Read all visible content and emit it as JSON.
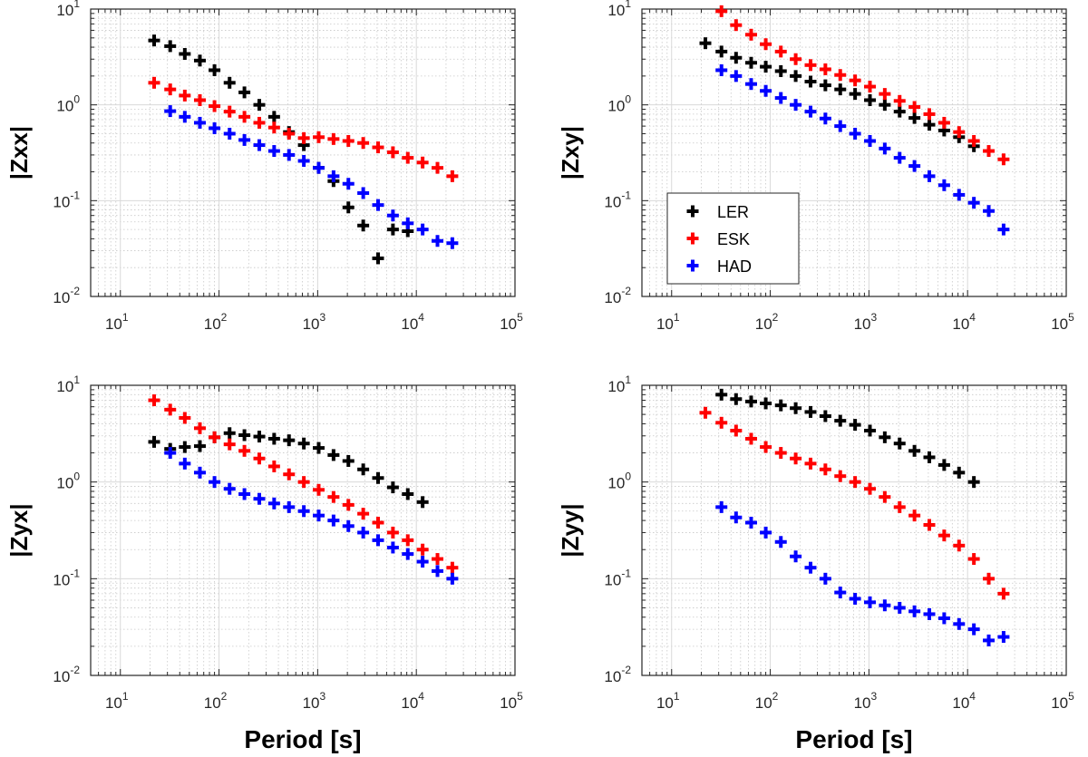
{
  "chart_data": [
    {
      "type": "scatter",
      "ylabel": "|Zxx|",
      "xlabel": "",
      "xscale": "log",
      "yscale": "log",
      "xlim": [
        5,
        100000
      ],
      "ylim": [
        0.01,
        10
      ],
      "grid": true,
      "series": [
        {
          "name": "LER",
          "color": "#000000",
          "points": [
            [
              22,
              4.7
            ],
            [
              32,
              4.1
            ],
            [
              45,
              3.4
            ],
            [
              64,
              2.9
            ],
            [
              90,
              2.3
            ],
            [
              128,
              1.7
            ],
            [
              181,
              1.35
            ],
            [
              256,
              1.0
            ],
            [
              362,
              0.75
            ],
            [
              512,
              0.52
            ],
            [
              724,
              0.38
            ],
            [
              1024,
              0.22
            ],
            [
              1448,
              0.16
            ],
            [
              2048,
              0.085
            ],
            [
              2896,
              0.055
            ],
            [
              4096,
              0.025
            ],
            [
              5793,
              0.05
            ],
            [
              8192,
              0.048
            ]
          ]
        },
        {
          "name": "ESK",
          "color": "#ff0000",
          "points": [
            [
              22,
              1.7
            ],
            [
              32,
              1.45
            ],
            [
              45,
              1.25
            ],
            [
              64,
              1.12
            ],
            [
              90,
              0.97
            ],
            [
              128,
              0.85
            ],
            [
              181,
              0.75
            ],
            [
              256,
              0.65
            ],
            [
              362,
              0.58
            ],
            [
              512,
              0.5
            ],
            [
              724,
              0.45
            ],
            [
              1024,
              0.46
            ],
            [
              1448,
              0.44
            ],
            [
              2048,
              0.42
            ],
            [
              2896,
              0.4
            ],
            [
              4096,
              0.36
            ],
            [
              5793,
              0.32
            ],
            [
              8192,
              0.28
            ],
            [
              11585,
              0.25
            ],
            [
              16384,
              0.22
            ],
            [
              23170,
              0.18
            ]
          ]
        },
        {
          "name": "HAD",
          "color": "#0000ff",
          "points": [
            [
              32,
              0.86
            ],
            [
              45,
              0.75
            ],
            [
              64,
              0.65
            ],
            [
              90,
              0.57
            ],
            [
              128,
              0.5
            ],
            [
              181,
              0.43
            ],
            [
              256,
              0.38
            ],
            [
              362,
              0.33
            ],
            [
              512,
              0.3
            ],
            [
              724,
              0.26
            ],
            [
              1024,
              0.22
            ],
            [
              1448,
              0.18
            ],
            [
              2048,
              0.15
            ],
            [
              2896,
              0.12
            ],
            [
              4096,
              0.09
            ],
            [
              5793,
              0.07
            ],
            [
              8192,
              0.058
            ],
            [
              11585,
              0.05
            ],
            [
              16384,
              0.038
            ],
            [
              23170,
              0.036
            ]
          ]
        }
      ]
    },
    {
      "type": "scatter",
      "ylabel": "|Zxy|",
      "xlabel": "",
      "xscale": "log",
      "yscale": "log",
      "xlim": [
        5,
        100000
      ],
      "ylim": [
        0.01,
        10
      ],
      "grid": true,
      "legend": {
        "position": "bottom-left",
        "entries": [
          "LER",
          "ESK",
          "HAD"
        ]
      },
      "series": [
        {
          "name": "LER",
          "color": "#000000",
          "points": [
            [
              22,
              4.4
            ],
            [
              32,
              3.6
            ],
            [
              45,
              3.1
            ],
            [
              64,
              2.75
            ],
            [
              90,
              2.5
            ],
            [
              128,
              2.25
            ],
            [
              181,
              2.0
            ],
            [
              256,
              1.75
            ],
            [
              362,
              1.6
            ],
            [
              512,
              1.45
            ],
            [
              724,
              1.3
            ],
            [
              1024,
              1.12
            ],
            [
              1448,
              1.0
            ],
            [
              2048,
              0.85
            ],
            [
              2896,
              0.73
            ],
            [
              4096,
              0.62
            ],
            [
              5793,
              0.54
            ],
            [
              8192,
              0.46
            ],
            [
              11585,
              0.37
            ]
          ]
        },
        {
          "name": "ESK",
          "color": "#ff0000",
          "points": [
            [
              32,
              9.5
            ],
            [
              45,
              6.8
            ],
            [
              64,
              5.4
            ],
            [
              90,
              4.3
            ],
            [
              128,
              3.6
            ],
            [
              181,
              3.0
            ],
            [
              256,
              2.6
            ],
            [
              362,
              2.35
            ],
            [
              512,
              2.05
            ],
            [
              724,
              1.8
            ],
            [
              1024,
              1.55
            ],
            [
              1448,
              1.3
            ],
            [
              2048,
              1.1
            ],
            [
              2896,
              0.95
            ],
            [
              4096,
              0.8
            ],
            [
              5793,
              0.65
            ],
            [
              8192,
              0.52
            ],
            [
              11585,
              0.42
            ],
            [
              16384,
              0.33
            ],
            [
              23170,
              0.27
            ]
          ]
        },
        {
          "name": "HAD",
          "color": "#0000ff",
          "points": [
            [
              32,
              2.3
            ],
            [
              45,
              2.0
            ],
            [
              64,
              1.65
            ],
            [
              90,
              1.4
            ],
            [
              128,
              1.18
            ],
            [
              181,
              1.0
            ],
            [
              256,
              0.85
            ],
            [
              362,
              0.72
            ],
            [
              512,
              0.6
            ],
            [
              724,
              0.5
            ],
            [
              1024,
              0.42
            ],
            [
              1448,
              0.35
            ],
            [
              2048,
              0.28
            ],
            [
              2896,
              0.23
            ],
            [
              4096,
              0.18
            ],
            [
              5793,
              0.145
            ],
            [
              8192,
              0.115
            ],
            [
              11585,
              0.095
            ],
            [
              16384,
              0.078
            ],
            [
              23170,
              0.05
            ]
          ]
        }
      ]
    },
    {
      "type": "scatter",
      "ylabel": "|Zyx|",
      "xlabel": "Period [s]",
      "xscale": "log",
      "yscale": "log",
      "xlim": [
        5,
        100000
      ],
      "ylim": [
        0.01,
        10
      ],
      "grid": true,
      "series": [
        {
          "name": "LER",
          "color": "#000000",
          "points": [
            [
              22,
              2.6
            ],
            [
              32,
              2.2
            ],
            [
              45,
              2.3
            ],
            [
              64,
              2.35
            ],
            [
              90,
              2.9
            ],
            [
              128,
              3.2
            ],
            [
              181,
              3.05
            ],
            [
              256,
              2.95
            ],
            [
              362,
              2.8
            ],
            [
              512,
              2.7
            ],
            [
              724,
              2.5
            ],
            [
              1024,
              2.25
            ],
            [
              1448,
              1.9
            ],
            [
              2048,
              1.65
            ],
            [
              2896,
              1.35
            ],
            [
              4096,
              1.1
            ],
            [
              5793,
              0.88
            ],
            [
              8192,
              0.75
            ],
            [
              11585,
              0.62
            ]
          ]
        },
        {
          "name": "ESK",
          "color": "#ff0000",
          "points": [
            [
              22,
              7.0
            ],
            [
              32,
              5.6
            ],
            [
              45,
              4.6
            ],
            [
              64,
              3.6
            ],
            [
              90,
              2.9
            ],
            [
              128,
              2.45
            ],
            [
              181,
              2.1
            ],
            [
              256,
              1.75
            ],
            [
              362,
              1.45
            ],
            [
              512,
              1.2
            ],
            [
              724,
              1.0
            ],
            [
              1024,
              0.83
            ],
            [
              1448,
              0.7
            ],
            [
              2048,
              0.58
            ],
            [
              2896,
              0.47
            ],
            [
              4096,
              0.38
            ],
            [
              5793,
              0.3
            ],
            [
              8192,
              0.25
            ],
            [
              11585,
              0.2
            ],
            [
              16384,
              0.16
            ],
            [
              23170,
              0.13
            ]
          ]
        },
        {
          "name": "HAD",
          "color": "#0000ff",
          "points": [
            [
              32,
              2.0
            ],
            [
              45,
              1.55
            ],
            [
              64,
              1.25
            ],
            [
              90,
              1.0
            ],
            [
              128,
              0.85
            ],
            [
              181,
              0.75
            ],
            [
              256,
              0.67
            ],
            [
              362,
              0.6
            ],
            [
              512,
              0.55
            ],
            [
              724,
              0.5
            ],
            [
              1024,
              0.45
            ],
            [
              1448,
              0.4
            ],
            [
              2048,
              0.35
            ],
            [
              2896,
              0.3
            ],
            [
              4096,
              0.25
            ],
            [
              5793,
              0.21
            ],
            [
              8192,
              0.18
            ],
            [
              11585,
              0.15
            ],
            [
              16384,
              0.12
            ],
            [
              23170,
              0.1
            ]
          ]
        }
      ]
    },
    {
      "type": "scatter",
      "ylabel": "|Zyy|",
      "xlabel": "Period [s]",
      "xscale": "log",
      "yscale": "log",
      "xlim": [
        5,
        100000
      ],
      "ylim": [
        0.01,
        10
      ],
      "grid": true,
      "series": [
        {
          "name": "LER",
          "color": "#000000",
          "points": [
            [
              32,
              8.0
            ],
            [
              45,
              7.2
            ],
            [
              64,
              6.8
            ],
            [
              90,
              6.5
            ],
            [
              128,
              6.2
            ],
            [
              181,
              5.8
            ],
            [
              256,
              5.3
            ],
            [
              362,
              4.8
            ],
            [
              512,
              4.3
            ],
            [
              724,
              3.9
            ],
            [
              1024,
              3.4
            ],
            [
              1448,
              2.9
            ],
            [
              2048,
              2.5
            ],
            [
              2896,
              2.1
            ],
            [
              4096,
              1.8
            ],
            [
              5793,
              1.5
            ],
            [
              8192,
              1.25
            ],
            [
              11585,
              1.0
            ]
          ]
        },
        {
          "name": "ESK",
          "color": "#ff0000",
          "points": [
            [
              22,
              5.2
            ],
            [
              32,
              4.1
            ],
            [
              45,
              3.4
            ],
            [
              64,
              2.8
            ],
            [
              90,
              2.3
            ],
            [
              128,
              2.0
            ],
            [
              181,
              1.75
            ],
            [
              256,
              1.55
            ],
            [
              362,
              1.35
            ],
            [
              512,
              1.15
            ],
            [
              724,
              1.0
            ],
            [
              1024,
              0.85
            ],
            [
              1448,
              0.7
            ],
            [
              2048,
              0.55
            ],
            [
              2896,
              0.45
            ],
            [
              4096,
              0.36
            ],
            [
              5793,
              0.28
            ],
            [
              8192,
              0.22
            ],
            [
              11585,
              0.16
            ],
            [
              16384,
              0.1
            ],
            [
              23170,
              0.07
            ]
          ]
        },
        {
          "name": "HAD",
          "color": "#0000ff",
          "points": [
            [
              32,
              0.55
            ],
            [
              45,
              0.43
            ],
            [
              64,
              0.38
            ],
            [
              90,
              0.3
            ],
            [
              128,
              0.24
            ],
            [
              181,
              0.17
            ],
            [
              256,
              0.13
            ],
            [
              362,
              0.1
            ],
            [
              512,
              0.072
            ],
            [
              724,
              0.062
            ],
            [
              1024,
              0.057
            ],
            [
              1448,
              0.053
            ],
            [
              2048,
              0.05
            ],
            [
              2896,
              0.046
            ],
            [
              4096,
              0.043
            ],
            [
              5793,
              0.039
            ],
            [
              8192,
              0.034
            ],
            [
              11585,
              0.03
            ],
            [
              16384,
              0.023
            ],
            [
              23170,
              0.025
            ]
          ]
        }
      ]
    }
  ]
}
